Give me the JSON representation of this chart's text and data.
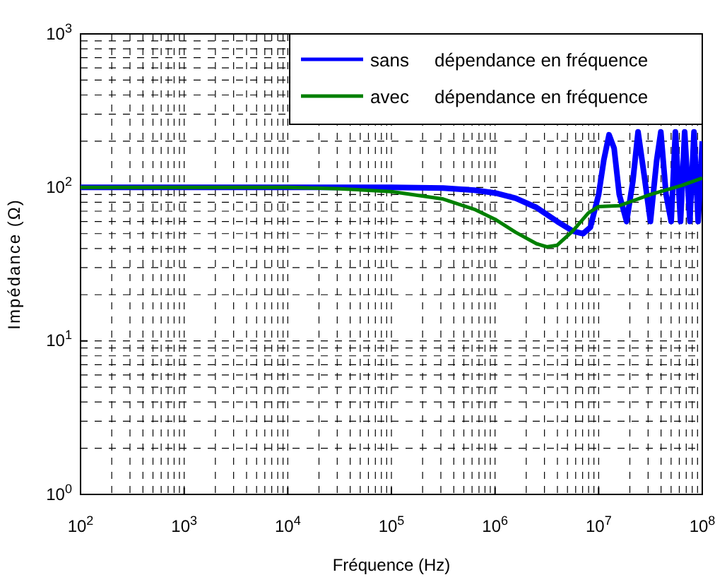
{
  "chart_data": {
    "type": "line",
    "xlabel": "Fréquence (Hz)",
    "ylabel": "Impédance (Ω)",
    "log": "xy",
    "grid": true,
    "legend": "top right",
    "line_style": "solid",
    "marker": "none",
    "xlim": [
      100,
      100000000
    ],
    "ylim": [
      1,
      1000
    ],
    "xticks": [
      {
        "value": 100,
        "label": "10$^{2}$"
      },
      {
        "value": 1000,
        "label": "10$^{3}$"
      },
      {
        "value": 10000,
        "label": "10$^{4}$"
      },
      {
        "value": 100000,
        "label": "10$^{5}$"
      },
      {
        "value": 1000000,
        "label": "10$^{6}$"
      },
      {
        "value": 10000000,
        "label": "10$^{7}$"
      },
      {
        "value": 100000000,
        "label": "10$^{8}$"
      }
    ],
    "yticks": [
      {
        "value": 1,
        "label": "10$^{0}$"
      },
      {
        "value": 10,
        "label": "10$^{1}$"
      },
      {
        "value": 100,
        "label": "10$^{2}$"
      },
      {
        "value": 1000,
        "label": "10$^{3}$"
      }
    ],
    "series": [
      {
        "name": "sans     dépendance en fréquence",
        "color": "#0000ff",
        "x": [
          100,
          100000,
          316000,
          631000,
          1000000,
          1580000,
          2510000,
          3980000,
          5620000,
          7080000,
          8320000,
          10000000,
          11200000,
          12600000,
          14100000,
          15800000,
          18600000,
          21400000,
          24000000,
          27500000,
          31600000,
          36300000,
          39800000,
          44700000,
          50100000,
          55000000,
          61700000,
          67600000,
          75900000,
          83200000,
          91200000,
          100000000
        ],
        "values": [
          100,
          100,
          99,
          96,
          92,
          85,
          74,
          60,
          52,
          50,
          55,
          90,
          150,
          220,
          180,
          90,
          60,
          110,
          230,
          120,
          60,
          150,
          230,
          90,
          60,
          230,
          60,
          230,
          60,
          230,
          60,
          200
        ]
      },
      {
        "name": "avec     dépendance en fréquence",
        "color": "#008000",
        "x": [
          100,
          10000,
          31600,
          100000,
          316000,
          631000,
          1000000,
          1580000,
          2510000,
          3160000,
          3980000,
          5620000,
          7940000,
          10000000,
          15800000,
          31600000,
          63100000,
          100000000
        ],
        "values": [
          100,
          100,
          98,
          94,
          84,
          72,
          62,
          51,
          43,
          41,
          42,
          52,
          68,
          75,
          76,
          90,
          103,
          115
        ]
      }
    ]
  }
}
